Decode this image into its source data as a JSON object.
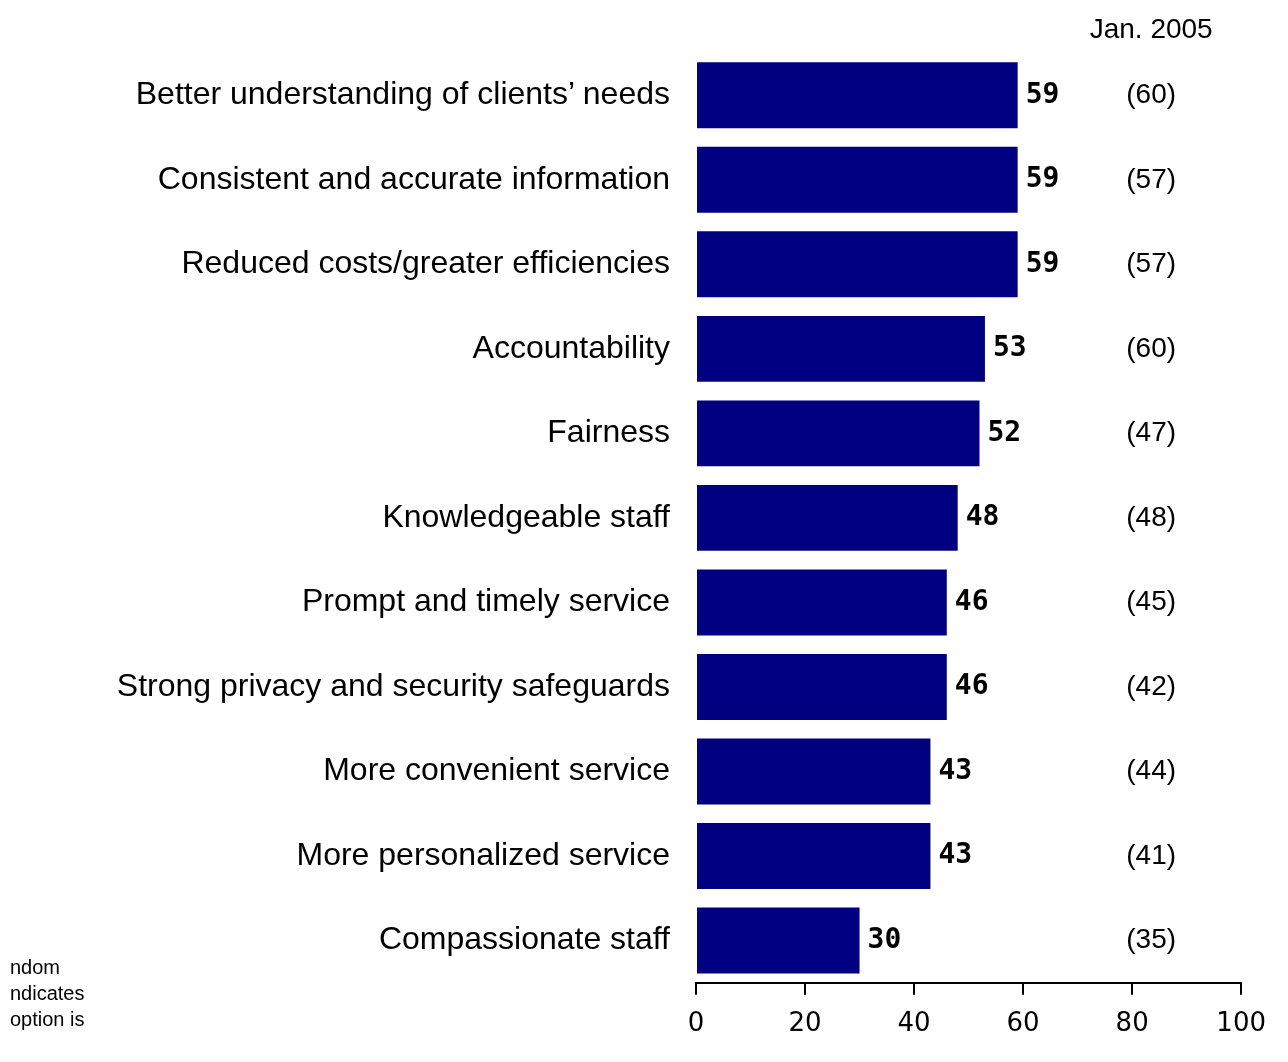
{
  "chart_data": {
    "type": "bar",
    "orientation": "horizontal",
    "categories": [
      "Better understanding of clients’ needs",
      "Consistent and accurate information",
      "Reduced costs/greater efficiencies",
      "Accountability",
      "Fairness",
      "Knowledgeable staff",
      "Prompt and timely service",
      "Strong privacy and security safeguards",
      "More convenient service",
      "More personalized service",
      "Compassionate staff"
    ],
    "values": [
      59,
      59,
      59,
      53,
      52,
      48,
      46,
      46,
      43,
      43,
      30
    ],
    "color": "#000080",
    "data_labels": true,
    "grid": false,
    "legend": false,
    "xlim": [
      0,
      100
    ],
    "xticks": [
      0,
      20,
      40,
      60,
      80,
      100
    ],
    "annotations": [
      "Jan. 2005",
      "(60)",
      "(57)",
      "(57)",
      "(60)",
      "(47)",
      "(48)",
      "(45)",
      "(42)",
      "(44)",
      "(41)",
      "(35)",
      "ndom\nndicates\noption is"
    ]
  }
}
